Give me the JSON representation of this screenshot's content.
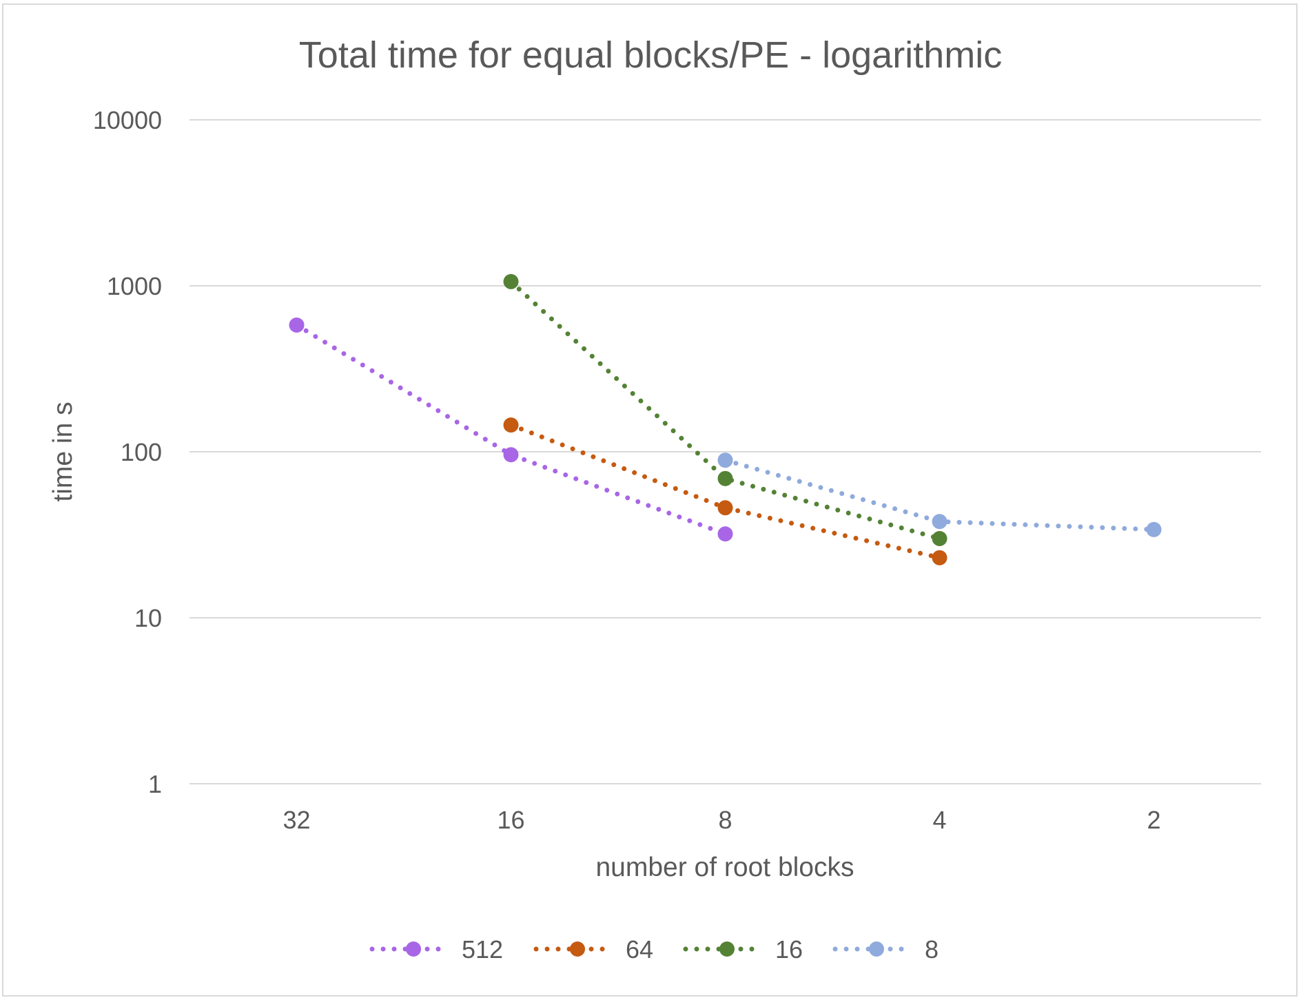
{
  "chart_data": {
    "type": "line",
    "title": "Total time for equal blocks/PE - logarithmic",
    "xlabel": "number of root blocks",
    "ylabel": "time in s",
    "y_scale": "log",
    "ylim": [
      1,
      10000
    ],
    "y_ticks": [
      "1",
      "10",
      "100",
      "1000",
      "10000"
    ],
    "categories": [
      "32",
      "16",
      "8",
      "4",
      "2"
    ],
    "grid": true,
    "legend_position": "bottom",
    "series": [
      {
        "name": "512",
        "color": "#A866E6",
        "values": [
          580,
          96,
          32,
          null,
          null
        ]
      },
      {
        "name": "64",
        "color": "#C55A11",
        "values": [
          null,
          145,
          46,
          23,
          null
        ]
      },
      {
        "name": "16",
        "color": "#548235",
        "values": [
          null,
          1060,
          69,
          30,
          null
        ]
      },
      {
        "name": "8",
        "color": "#8FAADC",
        "values": [
          null,
          null,
          89,
          38,
          34
        ]
      }
    ]
  }
}
